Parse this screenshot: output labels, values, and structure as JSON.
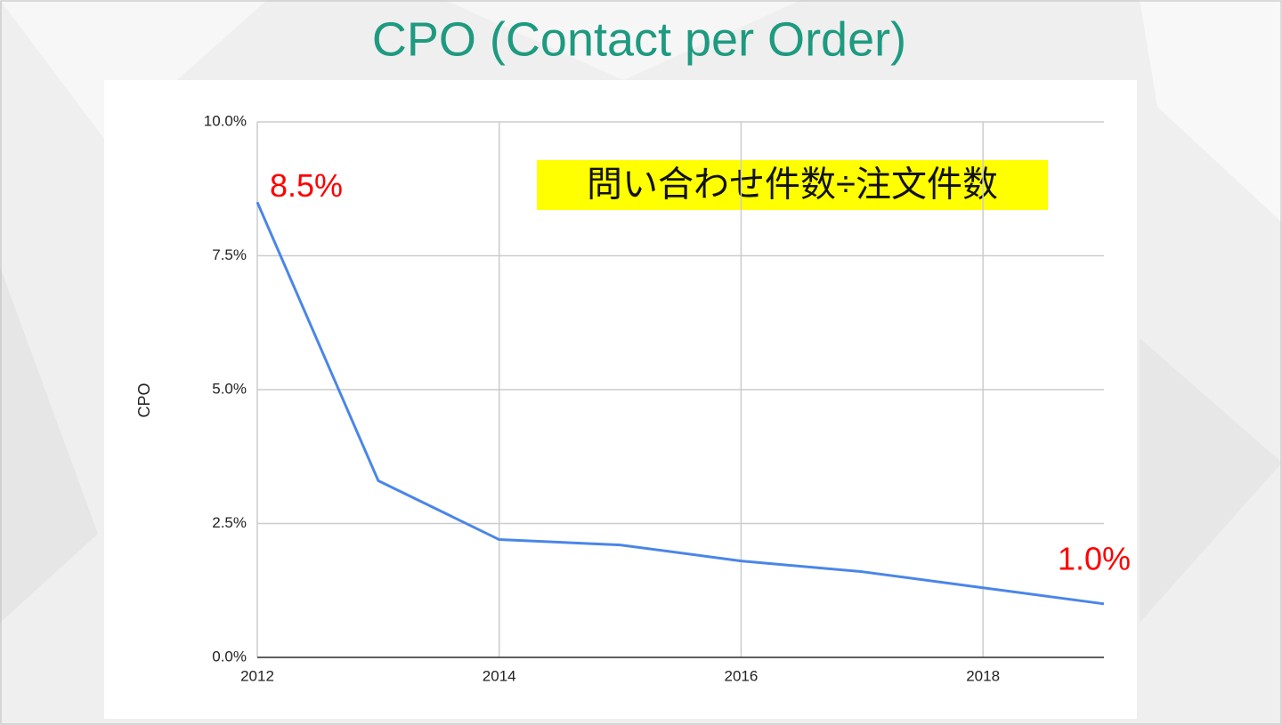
{
  "chart_data": {
    "type": "line",
    "title": "CPO (Contact per Order)",
    "annotation": "問い合わせ件数÷注文件数",
    "y_label": "CPO",
    "x": [
      2012,
      2013,
      2014,
      2015,
      2016,
      2017,
      2018,
      2019
    ],
    "values": [
      8.5,
      3.3,
      2.2,
      2.1,
      1.8,
      1.6,
      1.3,
      1.0
    ],
    "value_labels": [
      "8.5%",
      null,
      null,
      null,
      null,
      null,
      null,
      "1.0%"
    ],
    "color": "#4a86e8",
    "label_color": "#ff0000",
    "xlim": [
      2012,
      2019
    ],
    "xticks": [
      2012,
      2014,
      2016,
      2018
    ],
    "ylim": [
      0,
      10
    ],
    "yticks": [
      {
        "value": 0,
        "label": "0.0%"
      },
      {
        "value": 2.5,
        "label": "2.5%"
      },
      {
        "value": 5,
        "label": "5.0%"
      },
      {
        "value": 7.5,
        "label": "7.5%"
      },
      {
        "value": 10,
        "label": "10.0%"
      }
    ],
    "grid": true
  }
}
